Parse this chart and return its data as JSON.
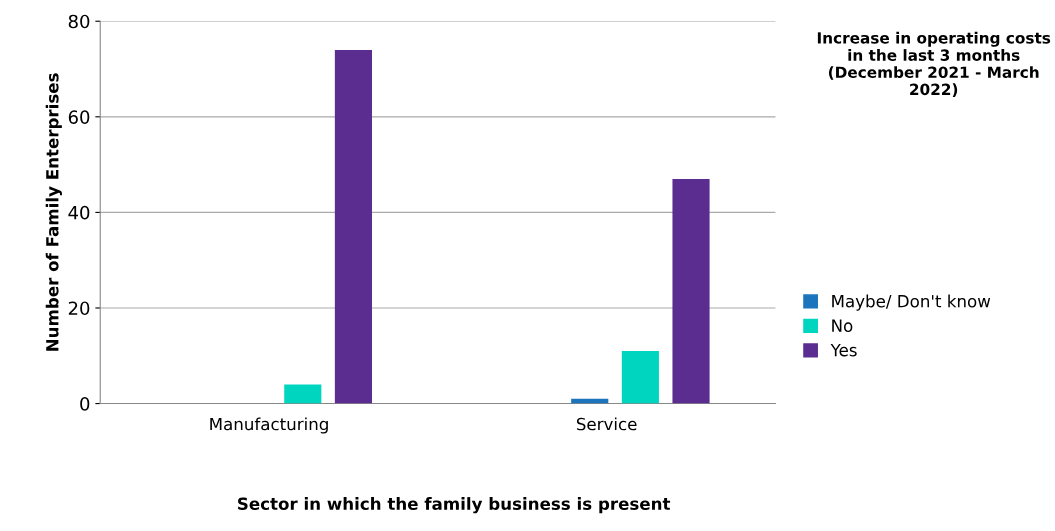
{
  "chart_data": {
    "type": "bar",
    "xlabel": "Sector in which the family business is present",
    "ylabel": "Number of Family Enterprises",
    "legend_title": "Increase in operating costs in the last 3 months (December 2021 - March 2022)",
    "categories": [
      "Manufacturing",
      "Service"
    ],
    "series": [
      {
        "name": "Maybe/ Don't know",
        "color": "#1c75bc",
        "values": [
          0,
          1
        ]
      },
      {
        "name": "No",
        "color": "#00d6bf",
        "values": [
          4,
          11
        ]
      },
      {
        "name": "Yes",
        "color": "#5c2d91",
        "values": [
          74,
          47
        ]
      }
    ],
    "ylim": [
      0,
      80
    ],
    "yticks": [
      0,
      20,
      40,
      60,
      80
    ],
    "grid": "y",
    "legend": "right"
  }
}
